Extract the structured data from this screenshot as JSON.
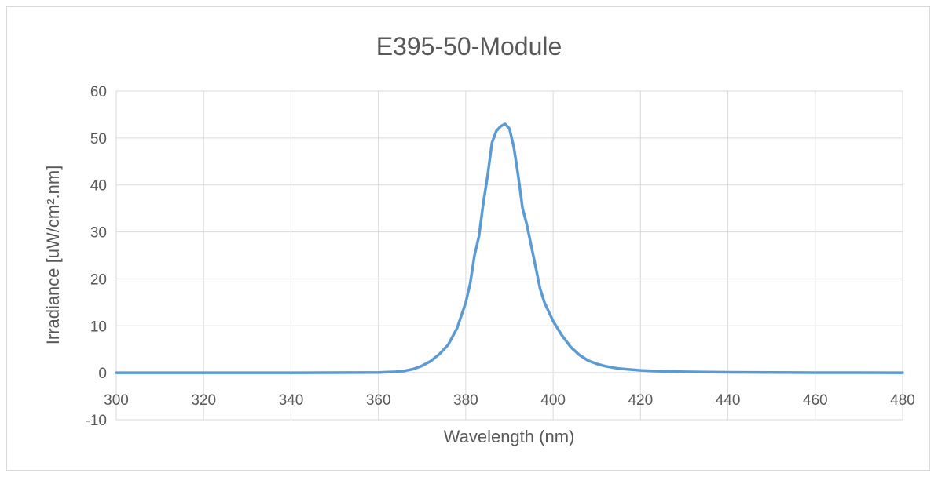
{
  "chart_data": {
    "type": "line",
    "title": "E395-50-Module",
    "xlabel": "Wavelength (nm)",
    "ylabel": "Irradiance [uW/cm².nm]",
    "xlim": [
      300,
      480
    ],
    "ylim": [
      -10,
      60
    ],
    "x_ticks": [
      300,
      320,
      340,
      360,
      380,
      400,
      420,
      440,
      460,
      480
    ],
    "y_ticks": [
      -10,
      0,
      10,
      20,
      30,
      40,
      50,
      60
    ],
    "grid": true,
    "legend": "none",
    "series": [
      {
        "color": "#5b9bd5",
        "x": [
          300,
          340,
          360,
          364,
          366,
          368,
          370,
          372,
          374,
          376,
          378,
          380,
          381,
          382,
          383,
          384,
          385,
          386,
          387,
          388,
          389,
          390,
          391,
          392,
          393,
          394,
          395,
          396,
          397,
          398,
          400,
          402,
          404,
          406,
          408,
          410,
          412,
          415,
          420,
          425,
          430,
          440,
          450,
          460,
          470,
          480
        ],
        "y": [
          0,
          0,
          0.05,
          0.2,
          0.4,
          0.8,
          1.5,
          2.5,
          4,
          6,
          9.5,
          15,
          19,
          25,
          29,
          36,
          42,
          49,
          51.5,
          52.5,
          53,
          52,
          48,
          42,
          35,
          31.5,
          27,
          22.5,
          18,
          15,
          11,
          8,
          5.5,
          3.8,
          2.6,
          1.9,
          1.4,
          0.9,
          0.5,
          0.3,
          0.2,
          0.1,
          0.05,
          0.03,
          0.02,
          0
        ]
      }
    ]
  }
}
